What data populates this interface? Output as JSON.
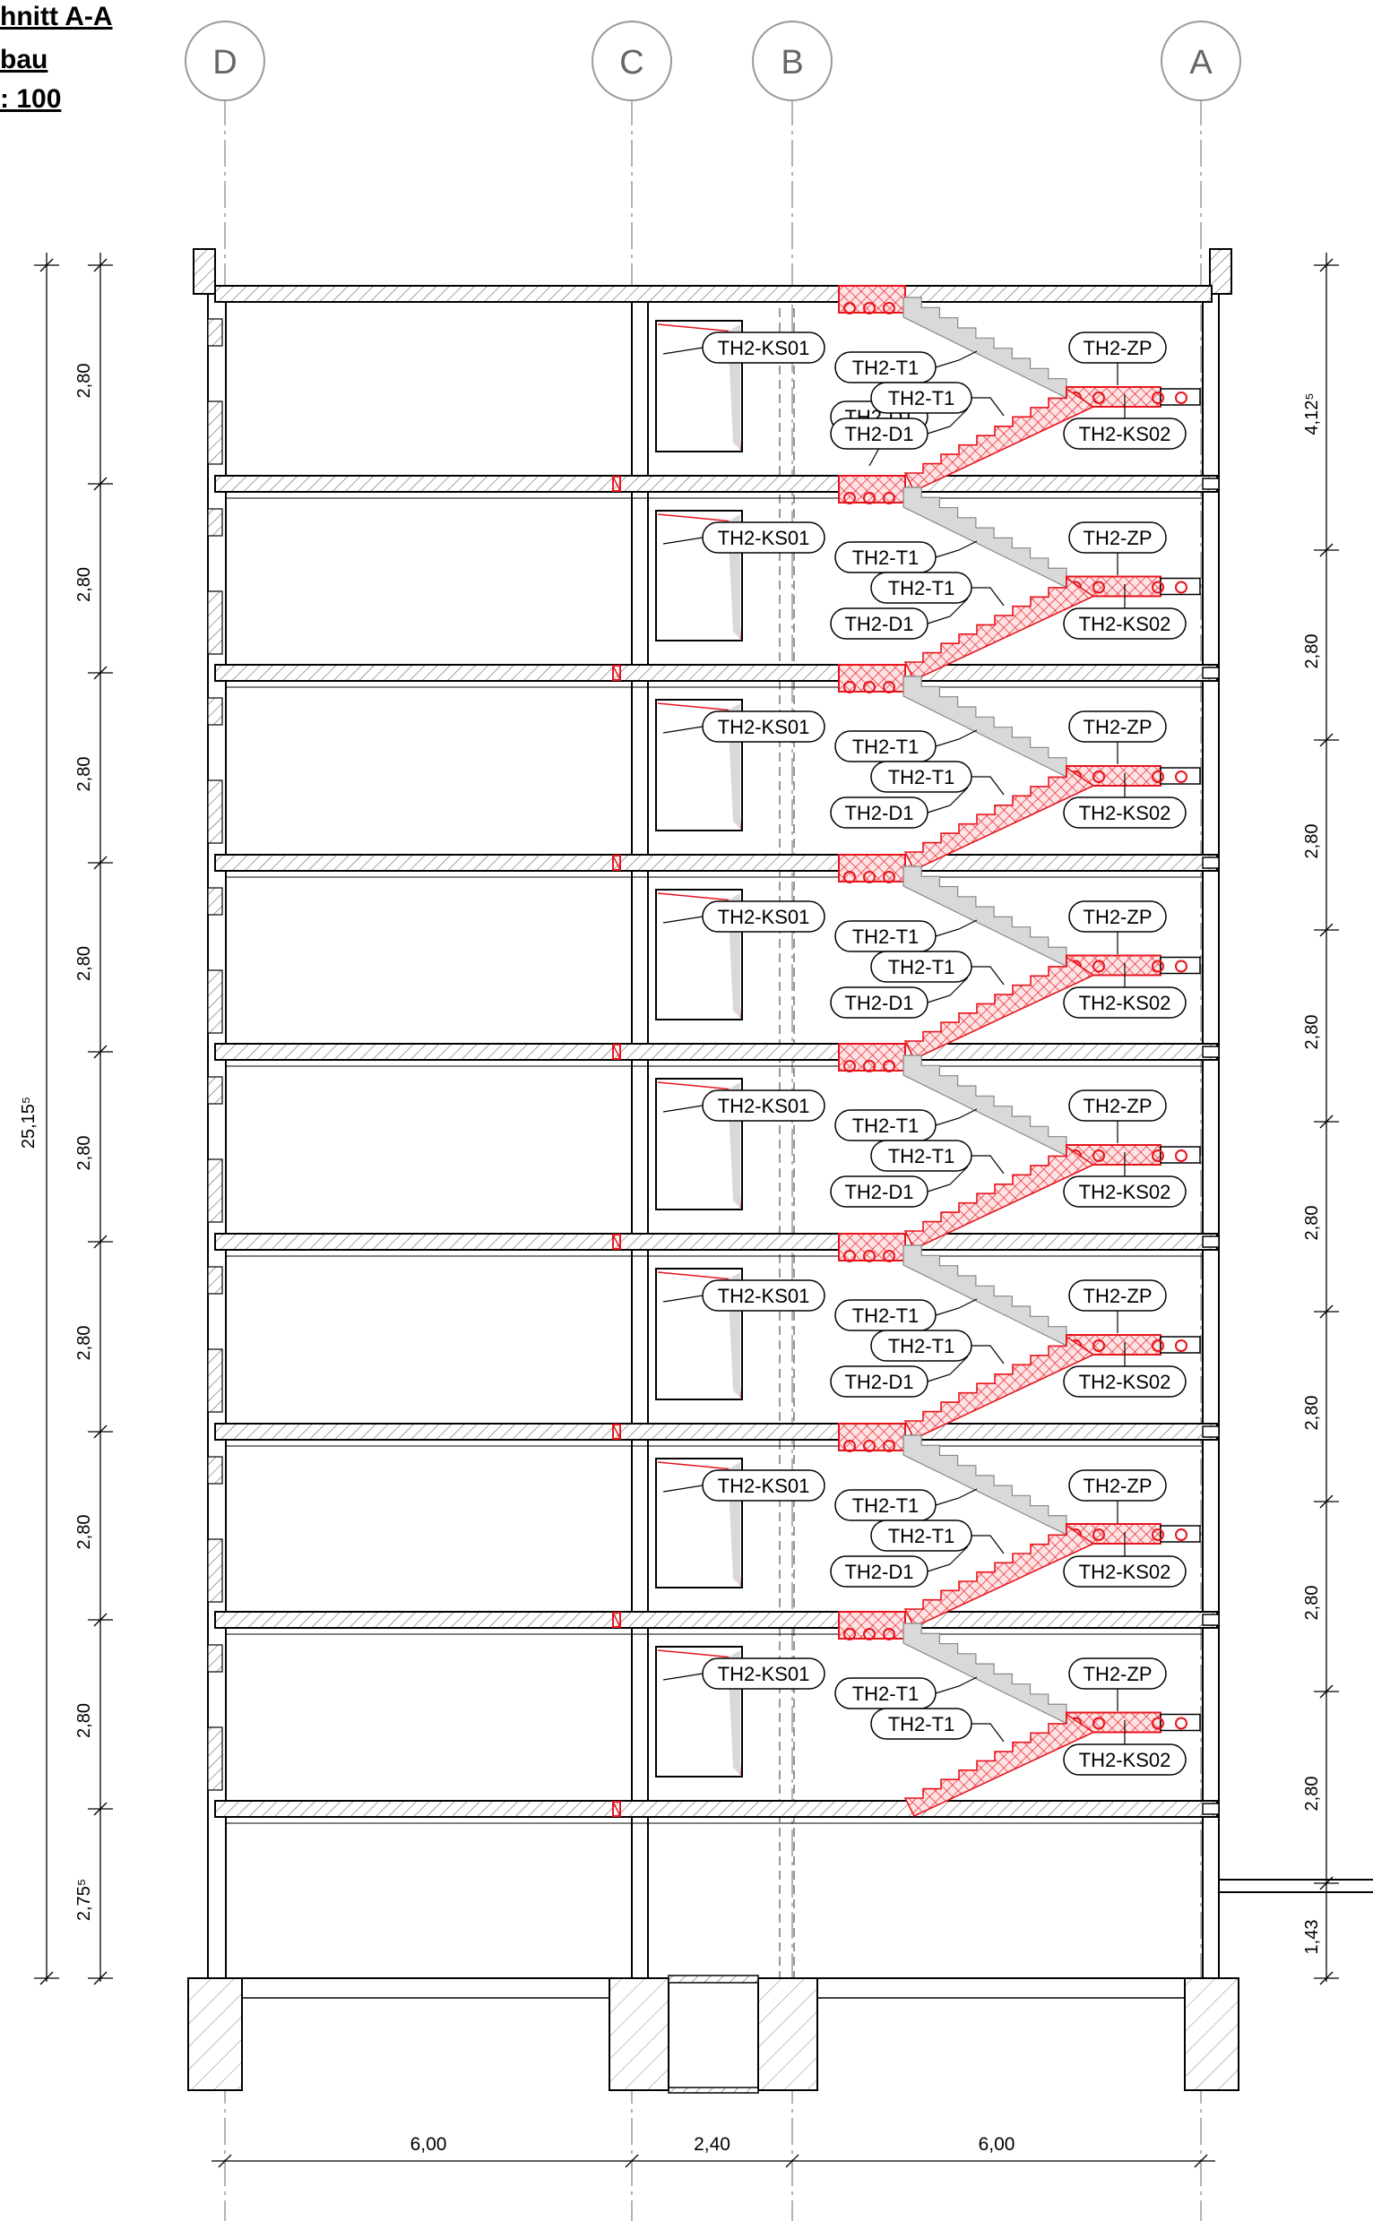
{
  "title": {
    "line1": "hnitt A-A",
    "line2": "bau",
    "line3": ": 100"
  },
  "axes": [
    {
      "label": "D"
    },
    {
      "label": "C"
    },
    {
      "label": "B"
    },
    {
      "label": "A"
    }
  ],
  "dimensions": {
    "left_total": "25,15⁵",
    "left_segments": [
      "2,80",
      "2,80",
      "2,80",
      "2,80",
      "2,80",
      "2,80",
      "2,80",
      "2,80",
      "2,75⁵"
    ],
    "right_segments": [
      "4,12⁵",
      "2,80",
      "2,80",
      "2,80",
      "2,80",
      "2,80",
      "2,80",
      "2,80",
      "1,43"
    ],
    "bottom": [
      "6,00",
      "2,40",
      "6,00"
    ]
  },
  "labels": {
    "top_d1": "TH2-D1",
    "floors": [
      {
        "ks01": "TH2-KS01",
        "t1a": "TH2-T1",
        "zp": "TH2-ZP",
        "t1b": "TH2-T1",
        "d1": "TH2-D1",
        "ks02": "TH2-KS02"
      },
      {
        "ks01": "TH2-KS01",
        "t1a": "TH2-T1",
        "zp": "TH2-ZP",
        "t1b": "TH2-T1",
        "d1": "TH2-D1",
        "ks02": "TH2-KS02"
      },
      {
        "ks01": "TH2-KS01",
        "t1a": "TH2-T1",
        "zp": "TH2-ZP",
        "t1b": "TH2-T1",
        "d1": "TH2-D1",
        "ks02": "TH2-KS02"
      },
      {
        "ks01": "TH2-KS01",
        "t1a": "TH2-T1",
        "zp": "TH2-ZP",
        "t1b": "TH2-T1",
        "d1": "TH2-D1",
        "ks02": "TH2-KS02"
      },
      {
        "ks01": "TH2-KS01",
        "t1a": "TH2-T1",
        "zp": "TH2-ZP",
        "t1b": "TH2-T1",
        "d1": "TH2-D1",
        "ks02": "TH2-KS02"
      },
      {
        "ks01": "TH2-KS01",
        "t1a": "TH2-T1",
        "zp": "TH2-ZP",
        "t1b": "TH2-T1",
        "d1": "TH2-D1",
        "ks02": "TH2-KS02"
      },
      {
        "ks01": "TH2-KS01",
        "t1a": "TH2-T1",
        "zp": "TH2-ZP",
        "t1b": "TH2-T1",
        "d1": "TH2-D1",
        "ks02": "TH2-KS02"
      },
      {
        "ks01": "TH2-KS01",
        "t1a": "TH2-T1",
        "zp": "TH2-ZP",
        "t1b": "TH2-T1",
        "d1": "",
        "ks02": "TH2-KS02"
      }
    ]
  },
  "colors": {
    "line": "#000000",
    "grid": "#9a9a9a",
    "hatch": "#555555",
    "red": "#e8141c",
    "redfill": "#f7c2c4",
    "grayfill": "#d9d9d9"
  }
}
